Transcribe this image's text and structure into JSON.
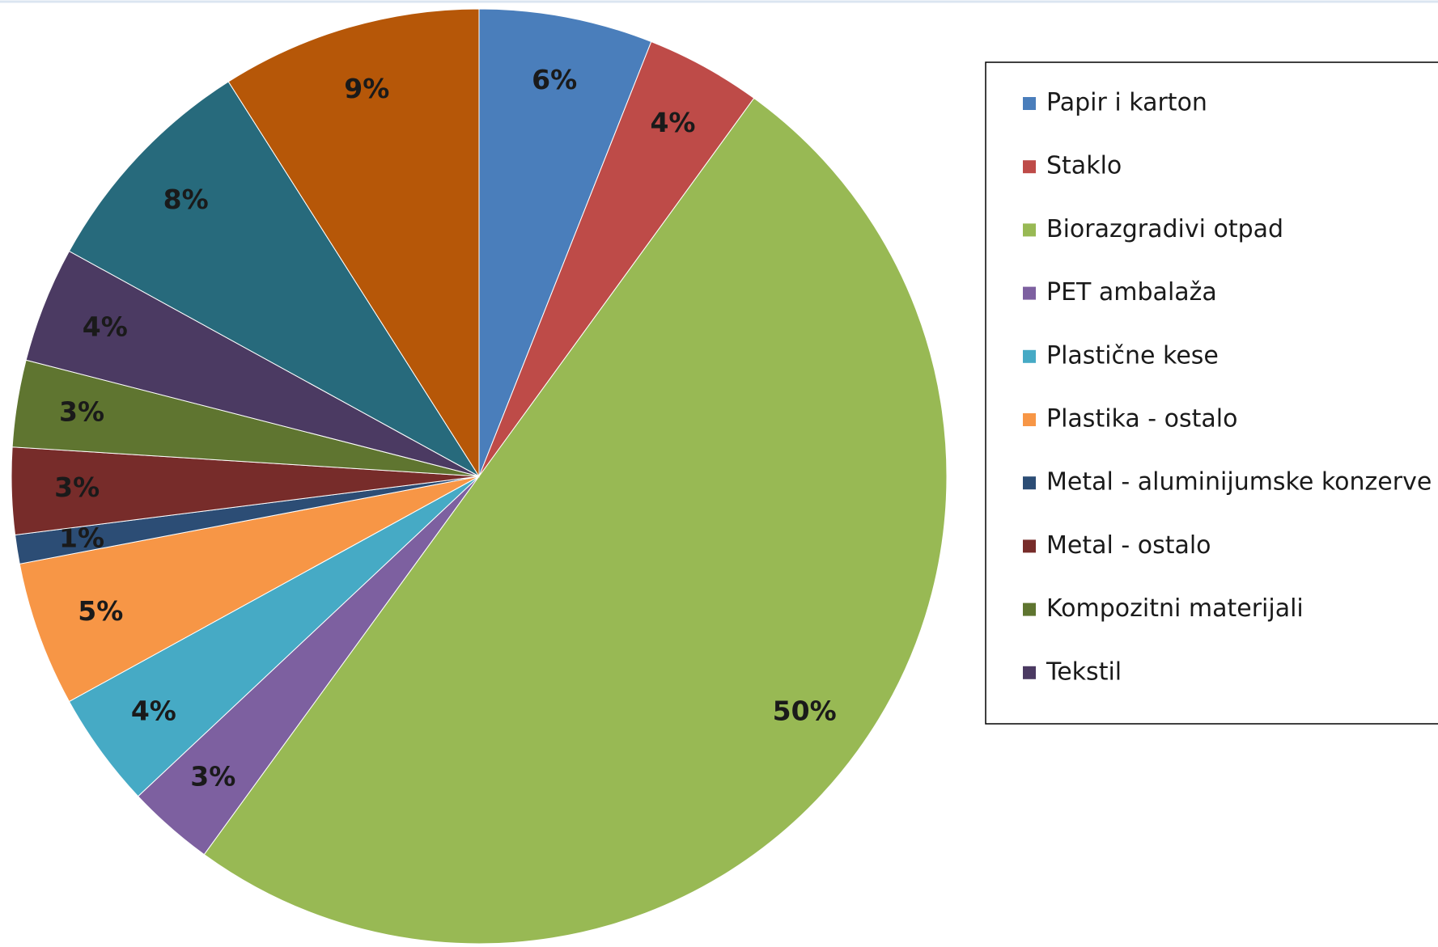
{
  "chart_data": {
    "type": "pie",
    "categories": [
      "Papir i karton",
      "Staklo",
      "Biorazgradivi otpad",
      "PET ambalaža",
      "Plastične kese",
      "Plastika - ostalo",
      "Metal - aluminijumske konzerve",
      "Metal - ostalo",
      "Kompozitni materijali",
      "Tekstil",
      null,
      null
    ],
    "values": [
      6,
      4,
      50,
      3,
      4,
      5,
      1,
      3,
      3,
      4,
      8,
      9
    ],
    "value_labels": [
      "6%",
      "4%",
      "50%",
      "3%",
      "4%",
      "5%",
      "1%",
      "3%",
      "3%",
      "4%",
      "8%",
      "9%"
    ],
    "colors": [
      "#4a7ebb",
      "#be4b48",
      "#98b954",
      "#7d60a0",
      "#46aac5",
      "#f79646",
      "#2c4d75",
      "#772c2a",
      "#5f7530",
      "#4b3a62",
      "#276a7c",
      "#b65708"
    ],
    "legend": "right"
  }
}
